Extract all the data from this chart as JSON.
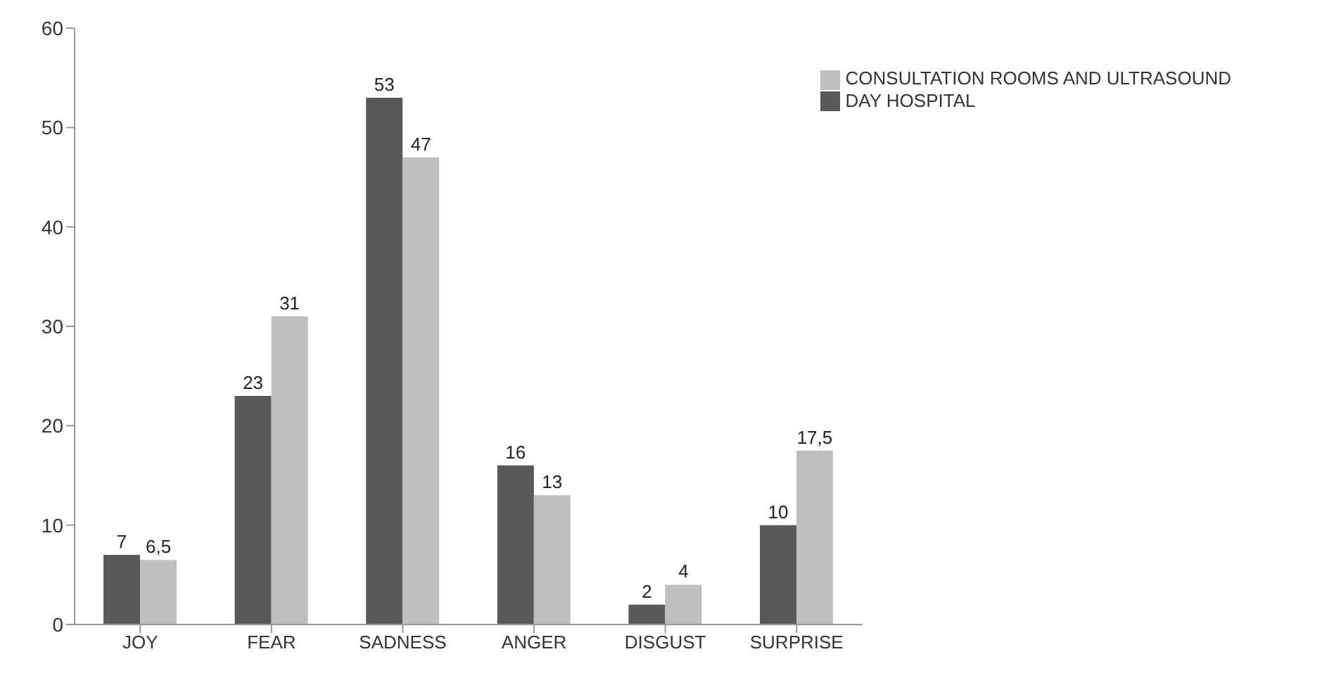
{
  "chart_data": {
    "type": "bar",
    "categories": [
      "JOY",
      "FEAR",
      "SADNESS",
      "ANGER",
      "DISGUST",
      "SURPRISE"
    ],
    "series": [
      {
        "name": "DAY HOSPITAL",
        "color": "#595959",
        "values": [
          7,
          23,
          53,
          16,
          2,
          10
        ],
        "value_labels": [
          "7",
          "23",
          "53",
          "16",
          "2",
          "10"
        ]
      },
      {
        "name": "CONSULTATION ROOMS AND ULTRASOUND",
        "color": "#bfbfbf",
        "values": [
          6.5,
          31,
          47,
          13,
          4,
          17.5
        ],
        "value_labels": [
          "6,5",
          "31",
          "47",
          "13",
          "4",
          "17,5"
        ]
      }
    ],
    "ylim": [
      0,
      60
    ],
    "yticks": [
      0,
      10,
      20,
      30,
      40,
      50,
      60
    ],
    "grid": false,
    "legend": "top right"
  }
}
